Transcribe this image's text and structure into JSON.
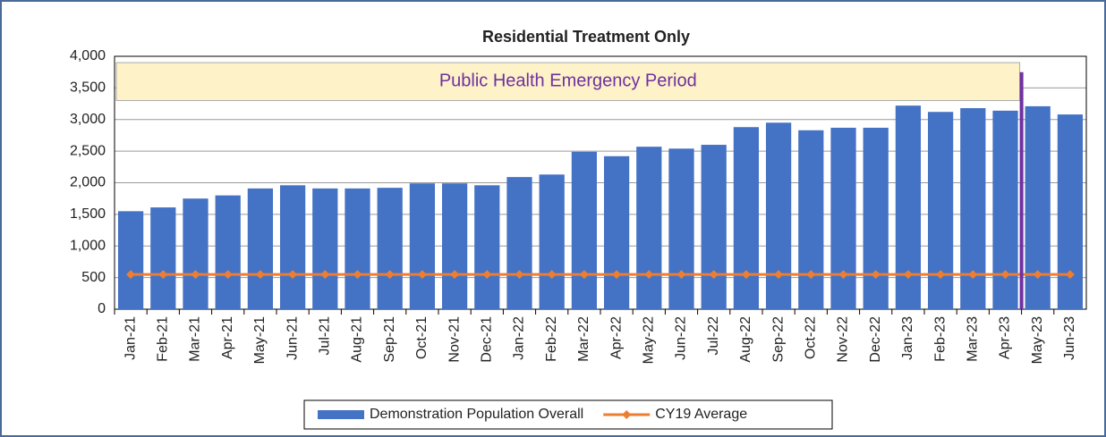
{
  "chart_data": {
    "type": "bar",
    "title": "Residential  Treatment Only",
    "annotation": "Public Health  Emergency Period",
    "categories": [
      "Jan-21",
      "Feb-21",
      "Mar-21",
      "Apr-21",
      "May-21",
      "Jun-21",
      "Jul-21",
      "Aug-21",
      "Sep-21",
      "Oct-21",
      "Nov-21",
      "Dec-21",
      "Jan-22",
      "Feb-22",
      "Mar-22",
      "Apr-22",
      "May-22",
      "Jun-22",
      "Jul-22",
      "Aug-22",
      "Sep-22",
      "Oct-22",
      "Nov-22",
      "Dec-22",
      "Jan-23",
      "Feb-23",
      "Mar-23",
      "Apr-23",
      "May-23",
      "Jun-23"
    ],
    "series": [
      {
        "name": "Demonstration Population Overall",
        "color": "#4472c4",
        "type": "bar",
        "values": [
          1550,
          1610,
          1750,
          1800,
          1910,
          1960,
          1910,
          1910,
          1920,
          1990,
          1990,
          1960,
          2090,
          2130,
          2490,
          2420,
          2570,
          2540,
          2600,
          2880,
          2950,
          2830,
          2870,
          2870,
          3220,
          3120,
          3180,
          3140,
          3210,
          3080
        ]
      },
      {
        "name": "CY19 Average",
        "color": "#ed7d31",
        "type": "line",
        "values": [
          550,
          550,
          550,
          550,
          550,
          550,
          550,
          550,
          550,
          550,
          550,
          550,
          550,
          550,
          550,
          550,
          550,
          550,
          550,
          550,
          550,
          550,
          550,
          550,
          550,
          550,
          550,
          550,
          550,
          550
        ]
      }
    ],
    "ylim": [
      0,
      4000
    ],
    "yticks": [
      0,
      500,
      {
        "value": 1000,
        "label": "1,000"
      },
      {
        "value": 1500,
        "label": "1,500"
      },
      {
        "value": 2000,
        "label": "2,000"
      },
      {
        "value": 2500,
        "label": "2,500"
      },
      {
        "value": 3000,
        "label": "3,000"
      },
      {
        "value": 3500,
        "label": "3,500"
      },
      {
        "value": 4000,
        "label": "4,000"
      }
    ],
    "grid": true,
    "legend": "bottom"
  }
}
